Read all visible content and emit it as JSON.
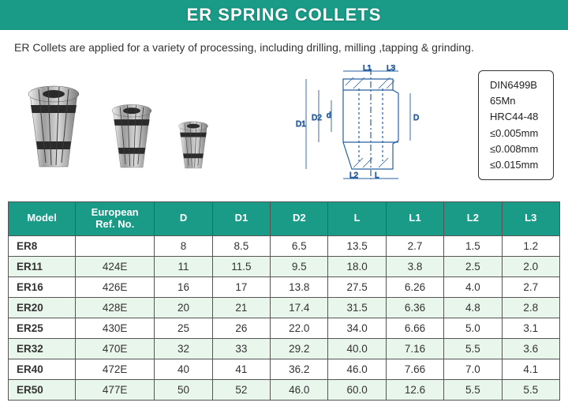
{
  "banner": {
    "title": "ER SPRING COLLETS",
    "bg": "#1a9b87",
    "fg": "#ffffff",
    "fontsize": 22
  },
  "subhead": "ER Collets are applied for a variety of processing, including drilling, milling ,tapping & grinding.",
  "diagram_labels": {
    "L1": "L1",
    "L3": "L3",
    "L2": "L2",
    "L": "L",
    "D1": "D1",
    "D2": "D2",
    "d": "d",
    "D": "D"
  },
  "specbox": {
    "lines": [
      "DIN6499B",
      "65Mn",
      "HRC44-48",
      "≤0.005mm",
      "≤0.008mm",
      "≤0.015mm"
    ],
    "border": "#333333",
    "radius": 6,
    "fontsize": 13
  },
  "collets_illustration": {
    "sizes": [
      {
        "scale": 1.0
      },
      {
        "scale": 0.78
      },
      {
        "scale": 0.58
      }
    ],
    "body_gradient": [
      "#f0f0f0",
      "#9e9e9e",
      "#d8d8d8",
      "#7a7a7a"
    ],
    "ring_color": "#2b2b2b",
    "bore_color": "#2b2b2b"
  },
  "table": {
    "header_bg": "#1a9b87",
    "header_fg": "#ffffff",
    "row_alt_bg": "#e9f6eb",
    "border": "#555555",
    "columns": [
      "Model",
      "European\nRef. No.",
      "D",
      "D1",
      "D2",
      "L",
      "L1",
      "L2",
      "L3"
    ],
    "col_widths_pct": [
      11,
      13,
      9.5,
      9.5,
      9.5,
      9.5,
      9.5,
      9.5,
      9.5
    ],
    "rows": [
      [
        "ER8",
        "",
        "8",
        "8.5",
        "6.5",
        "13.5",
        "2.7",
        "1.5",
        "1.2"
      ],
      [
        "ER11",
        "424E",
        "11",
        "11.5",
        "9.5",
        "18.0",
        "3.8",
        "2.5",
        "2.0"
      ],
      [
        "ER16",
        "426E",
        "16",
        "17",
        "13.8",
        "27.5",
        "6.26",
        "4.0",
        "2.7"
      ],
      [
        "ER20",
        "428E",
        "20",
        "21",
        "17.4",
        "31.5",
        "6.36",
        "4.8",
        "2.8"
      ],
      [
        "ER25",
        "430E",
        "25",
        "26",
        "22.0",
        "34.0",
        "6.66",
        "5.0",
        "3.1"
      ],
      [
        "ER32",
        "470E",
        "32",
        "33",
        "29.2",
        "40.0",
        "7.16",
        "5.5",
        "3.6"
      ],
      [
        "ER40",
        "472E",
        "40",
        "41",
        "36.2",
        "46.0",
        "7.66",
        "7.0",
        "4.1"
      ],
      [
        "ER50",
        "477E",
        "50",
        "52",
        "46.0",
        "60.0",
        "12.6",
        "5.5",
        "5.5"
      ]
    ]
  }
}
